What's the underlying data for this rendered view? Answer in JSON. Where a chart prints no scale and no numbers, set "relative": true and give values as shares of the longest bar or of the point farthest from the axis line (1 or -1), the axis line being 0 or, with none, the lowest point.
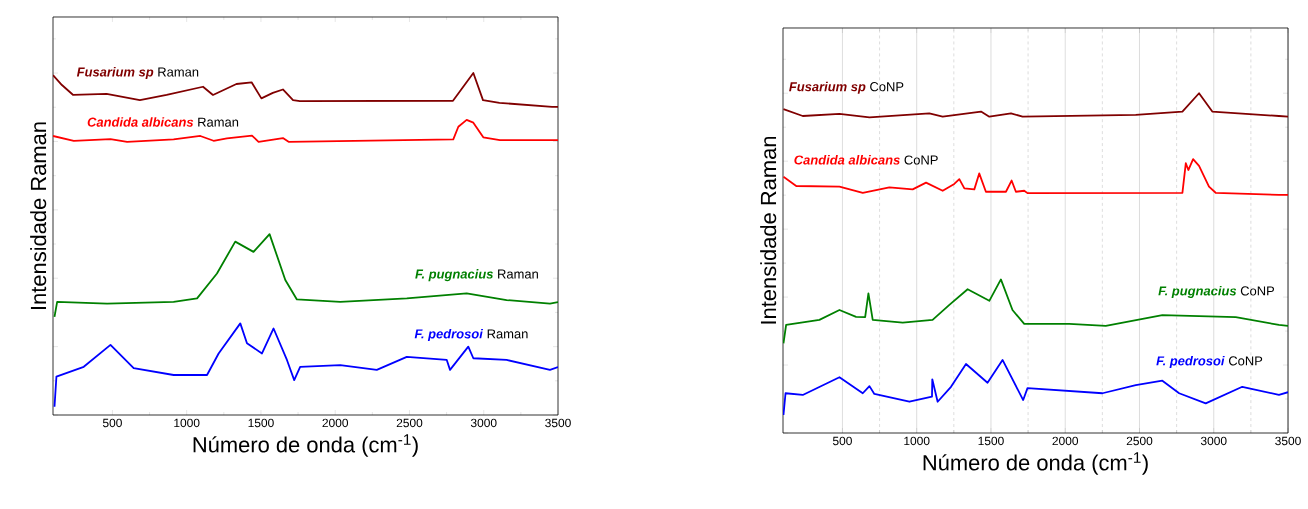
{
  "chart_data": [
    {
      "type": "line",
      "relative": true,
      "xlabel": "Número de onda (cm$^{-1}$)",
      "ylabel": "Intensidade Raman",
      "xlim": [
        100,
        3500
      ],
      "xticks": [
        500,
        1000,
        1500,
        2000,
        2500,
        3000,
        3500
      ],
      "tick_labels": "x",
      "grid": false,
      "legend": false,
      "marker": "none",
      "line_style": "solid",
      "series": [
        {
          "name": "**Fusarium sp** Raman",
          "color": "#800000",
          "x": [
            100,
            160,
            236,
            461,
            685,
            865,
            1110,
            1177,
            1335,
            1437,
            1503,
            1580,
            1648,
            1716,
            1762,
            2793,
            2930,
            2995,
            3106,
            3460,
            3500
          ],
          "values": [
            0.994,
            0.965,
            0.936,
            0.939,
            0.921,
            0.936,
            0.96,
            0.936,
            0.968,
            0.973,
            0.926,
            0.942,
            0.952,
            0.921,
            0.918,
            0.919,
            1.0,
            0.921,
            0.913,
            0.901,
            0.901
          ]
        },
        {
          "name": "**Candida albicans** Raman",
          "color": "#ff0000",
          "x": [
            100,
            240,
            487,
            599,
            912,
            1092,
            1181,
            1271,
            1440,
            1484,
            1648,
            1686,
            2795,
            2829,
            2885,
            2930,
            2997,
            3109,
            3466,
            3500
          ],
          "values": [
            0.816,
            0.802,
            0.807,
            0.799,
            0.806,
            0.816,
            0.802,
            0.809,
            0.817,
            0.799,
            0.81,
            0.799,
            0.806,
            0.843,
            0.863,
            0.855,
            0.812,
            0.804,
            0.804,
            0.804
          ]
        },
        {
          "name": "**F. pugnacius** Raman",
          "color": "#008000",
          "x": [
            110,
            128,
            464,
            912,
            1070,
            1204,
            1327,
            1450,
            1558,
            1664,
            1742,
            2034,
            2482,
            2885,
            3154,
            3446,
            3500
          ],
          "values": [
            0.287,
            0.331,
            0.326,
            0.331,
            0.341,
            0.414,
            0.507,
            0.477,
            0.529,
            0.395,
            0.338,
            0.331,
            0.341,
            0.356,
            0.336,
            0.326,
            0.33
          ]
        },
        {
          "name": "**F. pedrosoi** Raman",
          "color": "#0000ff",
          "x": [
            110,
            123,
            307,
            487,
            643,
            912,
            1137,
            1215,
            1361,
            1406,
            1507,
            1585,
            1675,
            1724,
            1764,
            2034,
            2280,
            2482,
            2751,
            2773,
            2896,
            2930,
            3154,
            3446,
            3500
          ],
          "values": [
            0.024,
            0.112,
            0.141,
            0.205,
            0.137,
            0.117,
            0.117,
            0.18,
            0.268,
            0.21,
            0.18,
            0.253,
            0.161,
            0.102,
            0.141,
            0.146,
            0.132,
            0.17,
            0.161,
            0.132,
            0.2,
            0.166,
            0.161,
            0.132,
            0.14
          ]
        }
      ]
    },
    {
      "type": "line",
      "relative": true,
      "xlabel": "Número de onda (cm$^{-1}$)",
      "ylabel": "Intensidade Raman",
      "xlim": [
        100,
        3500
      ],
      "xticks": [
        500,
        1000,
        1500,
        2000,
        2500,
        3000,
        3500
      ],
      "tick_labels": "x",
      "grid": "x",
      "legend": false,
      "marker": "none",
      "line_style": "solid",
      "series": [
        {
          "name": "**Fusarium sp** CoNP",
          "color": "#800000",
          "x": [
            103,
            233,
            480,
            682,
            1085,
            1175,
            1433,
            1489,
            1635,
            1713,
            2475,
            2789,
            2901,
            2990,
            3439,
            3500
          ],
          "values": [
            0.953,
            0.933,
            0.939,
            0.929,
            0.941,
            0.931,
            0.946,
            0.931,
            0.941,
            0.931,
            0.936,
            0.946,
            1.0,
            0.946,
            0.933,
            0.931
          ]
        },
        {
          "name": "**Candida albicans** CoNP",
          "color": "#ff0000",
          "x": [
            103,
            189,
            480,
            637,
            816,
            973,
            1063,
            1175,
            1253,
            1287,
            1321,
            1388,
            1421,
            1466,
            1601,
            1639,
            1668,
            1724,
            1746,
            2789,
            2812,
            2829,
            2861,
            2901,
            2968,
            3013,
            3439,
            3500
          ],
          "values": [
            0.754,
            0.727,
            0.725,
            0.707,
            0.723,
            0.717,
            0.737,
            0.713,
            0.733,
            0.747,
            0.72,
            0.717,
            0.764,
            0.71,
            0.71,
            0.743,
            0.71,
            0.713,
            0.706,
            0.707,
            0.794,
            0.774,
            0.806,
            0.786,
            0.725,
            0.707,
            0.701,
            0.701
          ]
        },
        {
          "name": "**F. pugnacius** CoNP",
          "color": "#008000",
          "x": [
            103,
            121,
            345,
            480,
            592,
            653,
            675,
            704,
            906,
            1107,
            1220,
            1343,
            1489,
            1567,
            1645,
            1724,
            2027,
            2273,
            2654,
            3148,
            3439,
            3500
          ],
          "values": [
            0.264,
            0.318,
            0.333,
            0.362,
            0.342,
            0.341,
            0.411,
            0.333,
            0.325,
            0.333,
            0.377,
            0.423,
            0.389,
            0.452,
            0.362,
            0.321,
            0.321,
            0.315,
            0.347,
            0.341,
            0.318,
            0.315
          ]
        },
        {
          "name": "**F. pedrosoi** CoNP",
          "color": "#0000ff",
          "x": [
            103,
            117,
            233,
            480,
            637,
            682,
            715,
            951,
            1103,
            1105,
            1141,
            1231,
            1332,
            1477,
            1578,
            1717,
            1746,
            2251,
            2475,
            2654,
            2767,
            2946,
            3192,
            3439,
            3500
          ],
          "values": [
            0.053,
            0.117,
            0.112,
            0.164,
            0.117,
            0.138,
            0.115,
            0.092,
            0.107,
            0.158,
            0.092,
            0.136,
            0.203,
            0.148,
            0.215,
            0.097,
            0.132,
            0.117,
            0.141,
            0.154,
            0.117,
            0.087,
            0.136,
            0.112,
            0.12
          ]
        }
      ]
    }
  ]
}
